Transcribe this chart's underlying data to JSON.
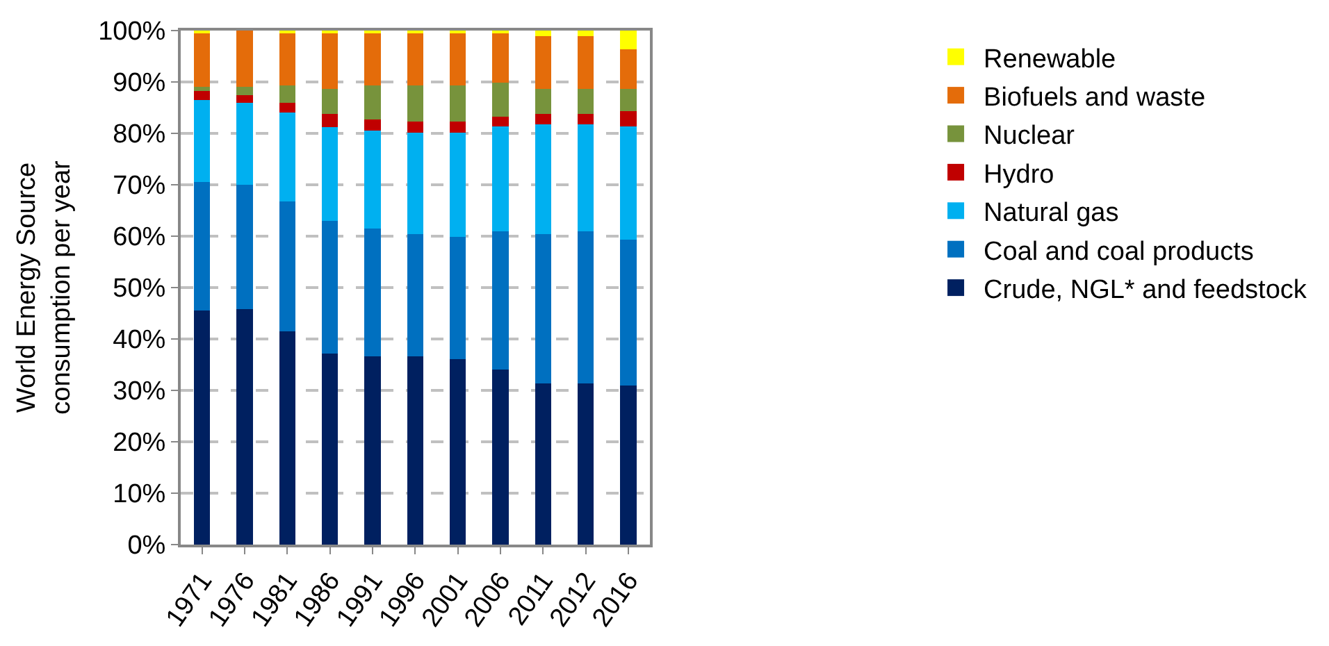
{
  "chart_data": {
    "type": "bar",
    "stacked": true,
    "ylabel": "World Energy Source\nconsumption per year",
    "categories": [
      "1971",
      "1976",
      "1981",
      "1986",
      "1991",
      "1996",
      "2001",
      "2006",
      "2011",
      "2012",
      "2016"
    ],
    "series": [
      {
        "name": "Crude, NGL* and feedstock",
        "color": "#002060",
        "values": [
          45.5,
          45.8,
          41.5,
          37.2,
          36.6,
          36.6,
          36.1,
          34,
          31.4,
          31.4,
          30.9
        ]
      },
      {
        "name": "Coal and coal products",
        "color": "#0070c0",
        "values": [
          25,
          24.2,
          25.3,
          25.8,
          24.9,
          23.8,
          23.7,
          27,
          29,
          29.6,
          28.4
        ]
      },
      {
        "name": "Natural gas",
        "color": "#00b0f0",
        "values": [
          16,
          16,
          17.2,
          18.2,
          19.1,
          19.8,
          20.4,
          20.3,
          21.4,
          20.8,
          22
        ]
      },
      {
        "name": "Hydro",
        "color": "#c00000",
        "values": [
          1.8,
          1.5,
          2,
          2.6,
          2.1,
          2.1,
          2.1,
          2,
          2,
          2,
          3
        ]
      },
      {
        "name": "Nuclear",
        "color": "#77933c",
        "values": [
          0.7,
          1.5,
          3.3,
          4.9,
          6.6,
          7,
          7,
          6.5,
          4.9,
          4.9,
          4.4
        ]
      },
      {
        "name": "Biofuels and waste",
        "color": "#e46c0a",
        "values": [
          10.7,
          11,
          10.3,
          10.9,
          10.3,
          10.3,
          10.3,
          9.8,
          10.2,
          10.2,
          7.6
        ]
      },
      {
        "name": "Renewable",
        "color": "#ffff00",
        "values": [
          0.3,
          0,
          0.4,
          0.4,
          0.4,
          0.4,
          0.4,
          0.4,
          1.1,
          1.1,
          3.7
        ]
      }
    ],
    "ylim": [
      0,
      100
    ],
    "yticks": [
      {
        "value": 0,
        "label": "0%"
      },
      {
        "value": 10,
        "label": "10%"
      },
      {
        "value": 20,
        "label": "20%"
      },
      {
        "value": 30,
        "label": "30%"
      },
      {
        "value": 40,
        "label": "40%"
      },
      {
        "value": 50,
        "label": "50%"
      },
      {
        "value": 60,
        "label": "60%"
      },
      {
        "value": 70,
        "label": "70%"
      },
      {
        "value": 80,
        "label": "80%"
      },
      {
        "value": 90,
        "label": "90%"
      },
      {
        "value": 100,
        "label": "100%"
      }
    ],
    "grid": "y",
    "legend": "right"
  }
}
